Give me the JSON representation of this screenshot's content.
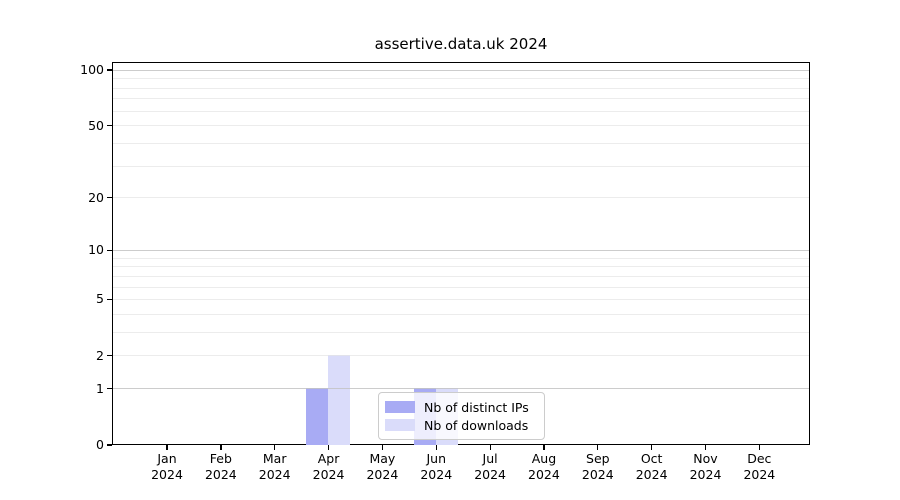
{
  "chart_data": {
    "type": "bar",
    "title": "assertive.data.uk 2024",
    "categories": [
      "Jan",
      "Feb",
      "Mar",
      "Apr",
      "May",
      "Jun",
      "Jul",
      "Aug",
      "Sep",
      "Oct",
      "Nov",
      "Dec"
    ],
    "x_year_label": "2024",
    "series": [
      {
        "name": "Nb of distinct IPs",
        "color": "#a8abf4",
        "values": [
          0,
          0,
          0,
          1,
          0,
          1,
          0,
          0,
          0,
          0,
          0,
          0
        ]
      },
      {
        "name": "Nb of downloads",
        "color": "#dadcfa",
        "values": [
          0,
          0,
          0,
          2,
          0,
          1,
          0,
          0,
          0,
          0,
          0,
          0
        ]
      }
    ],
    "y_axis": {
      "scale": "log1p",
      "tick_labels": [
        0,
        1,
        2,
        5,
        10,
        20,
        50,
        100
      ],
      "major_gridlines": [
        1,
        10,
        100
      ],
      "minor_gridlines": [
        2,
        3,
        4,
        5,
        6,
        7,
        8,
        9,
        20,
        30,
        40,
        50,
        60,
        70,
        80,
        90
      ],
      "ylim": [
        0,
        110
      ]
    },
    "legend": {
      "position": "lower center"
    },
    "colors": {
      "major_grid": "#c3c3c3",
      "minor_grid": "#e4e4e4",
      "axis": "#000000",
      "background": "#ffffff"
    }
  }
}
